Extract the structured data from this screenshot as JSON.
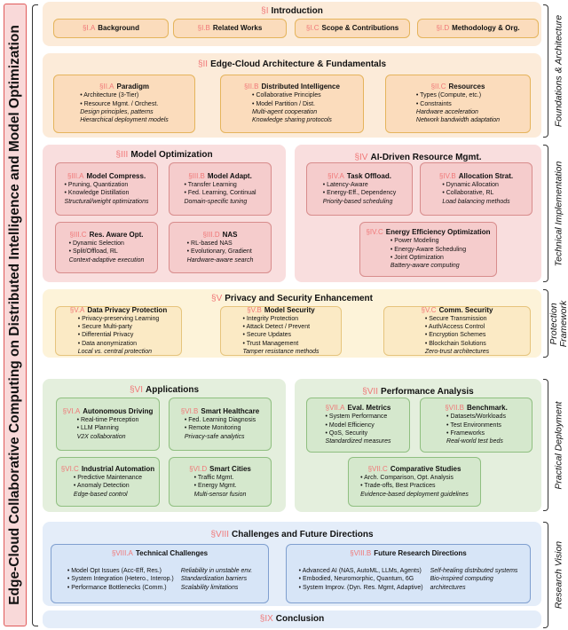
{
  "title": "Edge-Cloud Collaborative Computing on Distributed Intelligence and Model Optimization",
  "groups": [
    {
      "label": "Foundations & Architecture"
    },
    {
      "label": "Technical Implementation"
    },
    {
      "label": "Protection Framework"
    },
    {
      "label": "Practical Deployment"
    },
    {
      "label": "Research Vision"
    }
  ],
  "colors": {
    "tag": "#f07878",
    "foundations": "#fcebd9",
    "technical": "#f9dede",
    "protection": "#fdf3d9",
    "deployment": "#e4efdd",
    "vision": "#e4edf9"
  },
  "sections": [
    {
      "tag": "§I",
      "title": "Introduction",
      "subs": [
        {
          "tag": "§I.A",
          "title": "Background"
        },
        {
          "tag": "§I.B",
          "title": "Related Works"
        },
        {
          "tag": "§I.C",
          "title": "Scope & Contributions"
        },
        {
          "tag": "§I.D",
          "title": "Methodology & Org."
        }
      ]
    },
    {
      "tag": "§II",
      "title": "Edge-Cloud Architecture & Fundamentals",
      "subs": [
        {
          "tag": "§II.A",
          "title": "Paradigm",
          "bullets": [
            "Architecture (3-Tier)",
            "Resource Mgmt. / Orchest."
          ],
          "notes": [
            "Design principles, patterns",
            "Hierarchical deployment models"
          ]
        },
        {
          "tag": "§II.B",
          "title": "Distributed Intelligence",
          "bullets": [
            "Collaborative Principles",
            "Model Partition / Dist."
          ],
          "notes": [
            "Multi-agent cooperation",
            "Knowledge sharing protocols"
          ]
        },
        {
          "tag": "§II.C",
          "title": "Resources",
          "bullets": [
            "Types (Compute, etc.)",
            "Constraints"
          ],
          "notes": [
            "Hardware acceleration",
            "Network bandwidth adaptation"
          ]
        }
      ]
    },
    {
      "tag": "§III",
      "title": "Model Optimization",
      "subs": [
        {
          "tag": "§III.A",
          "title": "Model Compress.",
          "bullets": [
            "Pruning, Quantization",
            "Knowledge Distillation"
          ],
          "notes": [
            "Structural/weight optimizations"
          ]
        },
        {
          "tag": "§III.B",
          "title": "Model Adapt.",
          "bullets": [
            "Transfer Learning",
            "Fed. Learning, Continual"
          ],
          "notes": [
            "Domain-specific tuning"
          ]
        },
        {
          "tag": "§III.C",
          "title": "Res. Aware Opt.",
          "bullets": [
            "Dynamic Selection",
            "Split/Offload, RL"
          ],
          "notes": [
            "Context-adaptive execution"
          ]
        },
        {
          "tag": "§III.D",
          "title": "NAS",
          "bullets": [
            "RL-based NAS",
            "Evolutionary, Gradient"
          ],
          "notes": [
            "Hardware-aware search"
          ]
        }
      ]
    },
    {
      "tag": "§IV",
      "title": "AI-Driven Resource Mgmt.",
      "subs": [
        {
          "tag": "§IV.A",
          "title": "Task Offload.",
          "bullets": [
            "Latency-Aware",
            "Energy-Eff., Dependency"
          ],
          "notes": [
            "Priority-based scheduling"
          ]
        },
        {
          "tag": "§IV.B",
          "title": "Allocation Strat.",
          "bullets": [
            "Dynamic Allocation",
            "Collaborative, RL"
          ],
          "notes": [
            "Load balancing methods"
          ]
        },
        {
          "tag": "§IV.C",
          "title": "Energy Efficiency Optimization",
          "bullets": [
            "Power Modeling",
            "Energy-Aware Scheduling",
            "Joint Optimization"
          ],
          "notes": [
            "Battery-aware computing"
          ]
        }
      ]
    },
    {
      "tag": "§V",
      "title": "Privacy and Security Enhancement",
      "subs": [
        {
          "tag": "§V.A",
          "title": "Data Privacy Protection",
          "bullets": [
            "Privacy-preserving Learning",
            "Secure Multi-party",
            "Differential Privacy",
            "Data anonymization"
          ],
          "notes": [
            "Local vs. central protection"
          ]
        },
        {
          "tag": "§V.B",
          "title": "Model Security",
          "bullets": [
            "Integrity Protection",
            "Attack Detect / Prevent",
            "Secure Updates",
            "Trust Management"
          ],
          "notes": [
            "Tamper resistance methods"
          ]
        },
        {
          "tag": "§V.C",
          "title": "Comm. Security",
          "bullets": [
            "Secure Transmission",
            "Auth/Access Control",
            "Encryption Schemes",
            "Blockchain Solutions"
          ],
          "notes": [
            "Zero-trust architectures"
          ]
        }
      ]
    },
    {
      "tag": "§VI",
      "title": "Applications",
      "subs": [
        {
          "tag": "§VI.A",
          "title": "Autonomous Driving",
          "bullets": [
            "Real-time Perception",
            "LLM Planning"
          ],
          "notes": [
            "V2X collaboration"
          ]
        },
        {
          "tag": "§VI.B",
          "title": "Smart Healthcare",
          "bullets": [
            "Fed. Learning Diagnosis",
            "Remote Monitoring"
          ],
          "notes": [
            "Privacy-safe analytics"
          ]
        },
        {
          "tag": "§VI.C",
          "title": "Industrial Automation",
          "bullets": [
            "Predictive Maintenance",
            "Anomaly Detection"
          ],
          "notes": [
            "Edge-based control"
          ]
        },
        {
          "tag": "§VI.D",
          "title": "Smart Cities",
          "bullets": [
            "Traffic Mgmt.",
            "Energy Mgmt."
          ],
          "notes": [
            "Multi-sensor fusion"
          ]
        }
      ]
    },
    {
      "tag": "§VII",
      "title": "Performance Analysis",
      "subs": [
        {
          "tag": "§VII.A",
          "title": "Eval. Metrics",
          "bullets": [
            "System Performance",
            "Model Efficiency",
            "QoS, Security"
          ],
          "notes": [
            "Standardized measures"
          ]
        },
        {
          "tag": "§VII.B",
          "title": "Benchmark.",
          "bullets": [
            "Datasets/Workloads",
            "Test Environments",
            "Frameworks"
          ],
          "notes": [
            "Real-world test beds"
          ]
        },
        {
          "tag": "§VII.C",
          "title": "Comparative Studies",
          "bullets": [
            "Arch. Comparison, Opt. Analysis",
            "Trade-offs, Best Practices"
          ],
          "notes": [
            "Evidence-based deployment guidelines"
          ]
        }
      ]
    },
    {
      "tag": "§VIII",
      "title": "Challenges and Future Directions",
      "subs": [
        {
          "tag": "§VIII.A",
          "title": "Technical Challenges",
          "bullets": [
            "Model Opt Issues (Acc-Eff, Res.)",
            "System Integration (Hetero., Interop.)",
            "Performance Bottlenecks (Comm.)"
          ],
          "notes": [
            "Reliability in unstable env.",
            "Standardization barriers",
            "Scalability limitations"
          ]
        },
        {
          "tag": "§VIII.B",
          "title": "Future Research Directions",
          "bullets": [
            "Advanced AI (NAS, AutoML, LLMs, Agents)",
            "Embodied, Neuromorphic, Quantum, 6G",
            "System Improv. (Dyn. Res. Mgmt, Adaptive)"
          ],
          "notes": [
            "Self-healing distributed systems",
            "Bio-inspired computing",
            "architectures"
          ]
        }
      ]
    },
    {
      "tag": "§IX",
      "title": "Conclusion",
      "subs": []
    }
  ]
}
